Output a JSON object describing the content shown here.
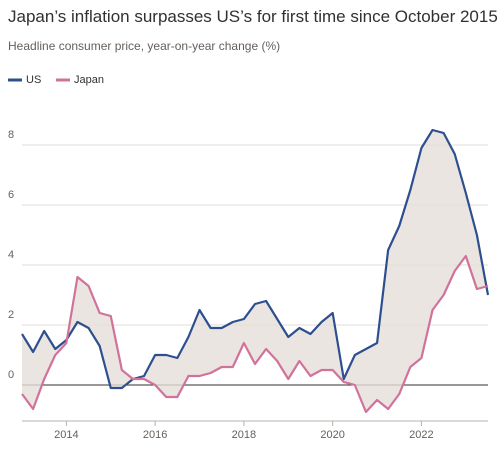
{
  "chart_data": {
    "type": "line",
    "title": "Japan’s inflation surpasses US’s for first time since October 2015",
    "subtitle": "Headline consumer price, year-on-year change (%)",
    "x": [
      2013.0,
      2013.25,
      2013.5,
      2013.75,
      2014.0,
      2014.25,
      2014.5,
      2014.75,
      2015.0,
      2015.25,
      2015.5,
      2015.75,
      2016.0,
      2016.25,
      2016.5,
      2016.75,
      2017.0,
      2017.25,
      2017.5,
      2017.75,
      2018.0,
      2018.25,
      2018.5,
      2018.75,
      2019.0,
      2019.25,
      2019.5,
      2019.75,
      2020.0,
      2020.25,
      2020.5,
      2020.75,
      2021.0,
      2021.25,
      2021.5,
      2021.75,
      2022.0,
      2022.25,
      2022.5,
      2022.75,
      2023.0,
      2023.25,
      2023.5
    ],
    "series": [
      {
        "name": "US",
        "color": "#2e4f8f",
        "values": [
          1.7,
          1.1,
          1.8,
          1.2,
          1.5,
          2.1,
          1.9,
          1.3,
          -0.1,
          -0.1,
          0.2,
          0.3,
          1.0,
          1.0,
          0.9,
          1.6,
          2.5,
          1.9,
          1.9,
          2.1,
          2.2,
          2.7,
          2.8,
          2.2,
          1.6,
          1.9,
          1.7,
          2.1,
          2.4,
          0.2,
          1.0,
          1.2,
          1.4,
          4.5,
          5.3,
          6.5,
          7.9,
          8.5,
          8.4,
          7.7,
          6.4,
          5.0,
          3.0
        ]
      },
      {
        "name": "Japan",
        "color": "#d0729a",
        "values": [
          -0.3,
          -0.8,
          0.2,
          1.0,
          1.4,
          3.6,
          3.3,
          2.4,
          2.3,
          0.5,
          0.2,
          0.2,
          0.0,
          -0.4,
          -0.4,
          0.3,
          0.3,
          0.4,
          0.6,
          0.6,
          1.4,
          0.7,
          1.2,
          0.8,
          0.2,
          0.8,
          0.3,
          0.5,
          0.5,
          0.1,
          0.0,
          -0.9,
          -0.5,
          -0.8,
          -0.3,
          0.6,
          0.9,
          2.5,
          3.0,
          3.8,
          4.3,
          3.2,
          3.3
        ]
      }
    ],
    "xlim": [
      2013,
      2023.5
    ],
    "xticks": [
      2014,
      2016,
      2018,
      2020,
      2022
    ],
    "ylim": [
      -1.2,
      9.5
    ],
    "yticks": [
      0,
      2,
      4,
      6,
      8
    ],
    "grid": true
  }
}
